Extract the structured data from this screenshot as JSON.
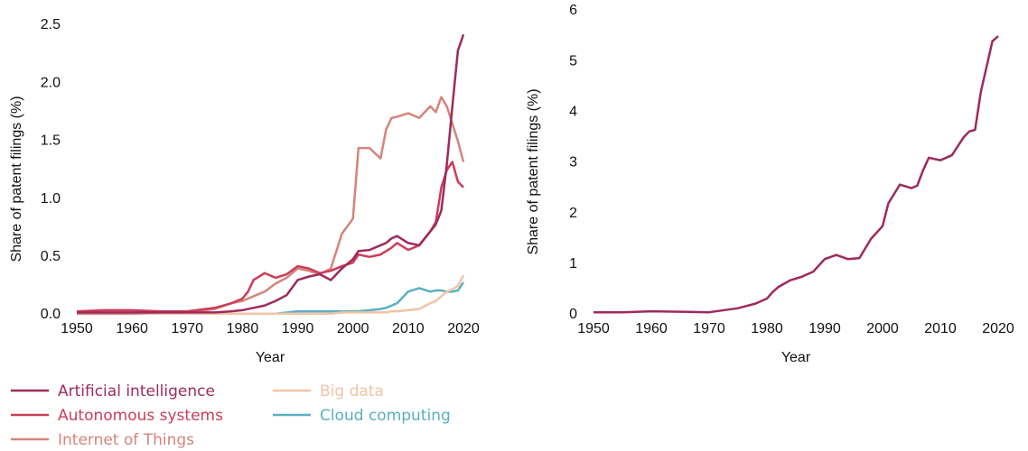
{
  "chart_data": [
    {
      "type": "line",
      "x_label": "Year",
      "y_label": "Share of patent filings (%)",
      "x": [
        1950,
        1955,
        1960,
        1965,
        1970,
        1975,
        1978,
        1980,
        1981,
        1982,
        1984,
        1986,
        1988,
        1990,
        1992,
        1994,
        1996,
        1998,
        2000,
        2001,
        2003,
        2005,
        2006,
        2007,
        2008,
        2010,
        2012,
        2014,
        2015,
        2016,
        2017,
        2018,
        2019,
        2020
      ],
      "xlim": [
        1950,
        2020
      ],
      "xticks": [
        1950,
        1960,
        1970,
        1980,
        1990,
        2000,
        2010,
        2020
      ],
      "ylim": [
        0,
        2.5
      ],
      "yticks": [
        {
          "value": 0,
          "label": "0.0"
        },
        0.5,
        {
          "value": 1,
          "label": "1.0"
        },
        1.5,
        {
          "value": 2,
          "label": "2.0"
        },
        2.5
      ],
      "series": [
        {
          "name": "Artificial intelligence",
          "color": "#9e2a5e",
          "values": [
            0.02,
            0.02,
            0.02,
            0.02,
            0.02,
            0.02,
            0.03,
            0.04,
            0.05,
            0.06,
            0.08,
            0.12,
            0.17,
            0.3,
            0.33,
            0.35,
            0.3,
            0.4,
            0.48,
            0.55,
            0.56,
            0.6,
            0.62,
            0.66,
            0.68,
            0.62,
            0.6,
            0.72,
            0.78,
            0.9,
            1.3,
            1.8,
            2.28,
            2.42
          ]
        },
        {
          "name": "Autonomous systems",
          "color": "#cc3d5a",
          "values": [
            0.03,
            0.04,
            0.04,
            0.03,
            0.03,
            0.06,
            0.1,
            0.14,
            0.2,
            0.3,
            0.36,
            0.32,
            0.35,
            0.42,
            0.4,
            0.36,
            0.38,
            0.42,
            0.45,
            0.52,
            0.5,
            0.52,
            0.55,
            0.58,
            0.62,
            0.56,
            0.6,
            0.72,
            0.8,
            1.1,
            1.25,
            1.32,
            1.15,
            1.1
          ]
        },
        {
          "name": "Internet of Things",
          "color": "#d4857a",
          "values": [
            0.01,
            0.01,
            0.01,
            0.02,
            0.02,
            0.05,
            0.1,
            0.12,
            0.14,
            0.16,
            0.2,
            0.27,
            0.32,
            0.4,
            0.38,
            0.35,
            0.4,
            0.7,
            0.83,
            1.44,
            1.44,
            1.35,
            1.6,
            1.7,
            1.71,
            1.74,
            1.7,
            1.8,
            1.75,
            1.88,
            1.8,
            1.65,
            1.5,
            1.32
          ]
        },
        {
          "name": "Big data",
          "color": "#f0c4a8",
          "values": [
            0.01,
            0.01,
            0.01,
            0.01,
            0.01,
            0.01,
            0.01,
            0.01,
            0.01,
            0.01,
            0.01,
            0.01,
            0.01,
            0.01,
            0.01,
            0.01,
            0.01,
            0.02,
            0.02,
            0.02,
            0.02,
            0.02,
            0.02,
            0.03,
            0.03,
            0.04,
            0.05,
            0.1,
            0.12,
            0.16,
            0.2,
            0.22,
            0.25,
            0.34
          ]
        },
        {
          "name": "Cloud computing",
          "color": "#5ab0c0",
          "values": [
            0.01,
            0.01,
            0.01,
            0.01,
            0.01,
            0.01,
            0.01,
            0.01,
            0.01,
            0.01,
            0.01,
            0.01,
            0.02,
            0.03,
            0.03,
            0.03,
            0.03,
            0.03,
            0.03,
            0.03,
            0.04,
            0.05,
            0.06,
            0.08,
            0.1,
            0.2,
            0.23,
            0.2,
            0.21,
            0.21,
            0.2,
            0.2,
            0.21,
            0.28
          ]
        }
      ]
    },
    {
      "type": "line",
      "x_label": "Year",
      "y_label": "Share of patent filings (%)",
      "x": [
        1950,
        1955,
        1960,
        1965,
        1970,
        1975,
        1978,
        1980,
        1981,
        1982,
        1984,
        1986,
        1988,
        1990,
        1992,
        1994,
        1996,
        1998,
        2000,
        2001,
        2003,
        2005,
        2006,
        2007,
        2008,
        2010,
        2012,
        2014,
        2015,
        2016,
        2017,
        2018,
        2019,
        2020
      ],
      "xlim": [
        1950,
        2020
      ],
      "xticks": [
        1950,
        1960,
        1970,
        1980,
        1990,
        2000,
        2010,
        2020
      ],
      "ylim": [
        0,
        6
      ],
      "yticks": [
        0,
        1,
        2,
        3,
        4,
        5,
        6
      ],
      "color": "#9e2a5e",
      "values": [
        0.05,
        0.05,
        0.07,
        0.06,
        0.05,
        0.13,
        0.22,
        0.32,
        0.45,
        0.55,
        0.68,
        0.75,
        0.85,
        1.1,
        1.18,
        1.1,
        1.12,
        1.5,
        1.75,
        2.2,
        2.57,
        2.5,
        2.55,
        2.85,
        3.1,
        3.05,
        3.15,
        3.5,
        3.62,
        3.65,
        4.4,
        4.9,
        5.4,
        5.5
      ]
    }
  ]
}
